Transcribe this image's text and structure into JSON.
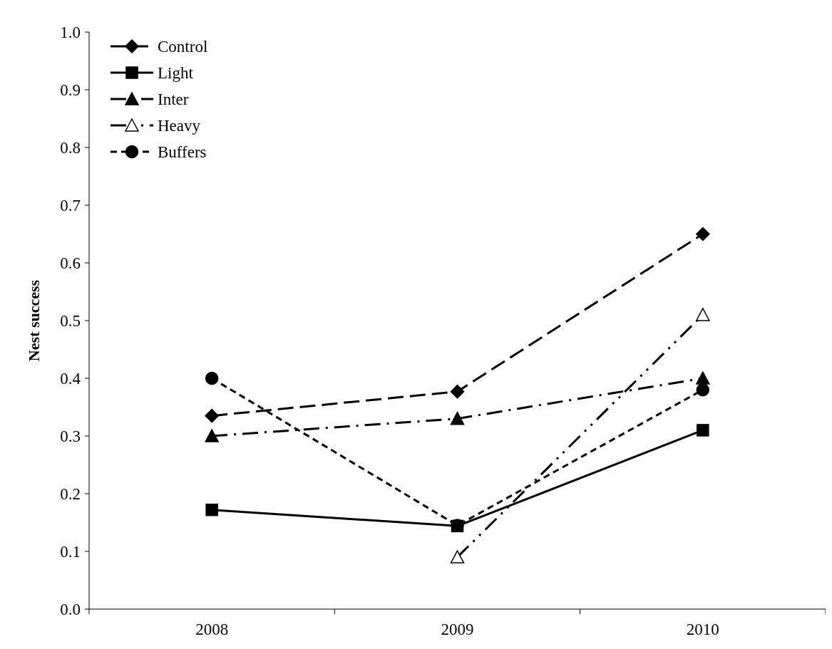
{
  "chart_data": {
    "type": "line",
    "ylabel": "Nest success",
    "categories": [
      "2008",
      "2009",
      "2010"
    ],
    "ylim": [
      0,
      1
    ],
    "yticks": [
      {
        "value": 0,
        "label": "0.0"
      },
      {
        "value": 0.1,
        "label": "0.1"
      },
      {
        "value": 0.2,
        "label": "0.2"
      },
      {
        "value": 0.3,
        "label": "0.3"
      },
      {
        "value": 0.4,
        "label": "0.4"
      },
      {
        "value": 0.5,
        "label": "0.5"
      },
      {
        "value": 0.6,
        "label": "0.6"
      },
      {
        "value": 0.7,
        "label": "0.7"
      },
      {
        "value": 0.8,
        "label": "0.8"
      },
      {
        "value": 0.9,
        "label": "0.9"
      },
      {
        "value": 1,
        "label": "1.0"
      }
    ],
    "grid": false,
    "legend": "top left",
    "series": [
      {
        "name": "Control",
        "color": "#000000",
        "values": [
          0.335,
          0.377,
          0.65
        ],
        "marker": "diamond",
        "line_style": "dashed"
      },
      {
        "name": "Light",
        "color": "#000000",
        "values": [
          0.172,
          0.144,
          0.31
        ],
        "marker": "square",
        "line_style": "solid"
      },
      {
        "name": "Inter",
        "color": "#000000",
        "values": [
          0.3,
          0.33,
          0.4
        ],
        "marker": "triangle",
        "line_style": "dashed"
      },
      {
        "name": "Heavy",
        "color": "#000000",
        "values": [
          null,
          0.09,
          0.51
        ],
        "marker": "triangle",
        "line_style": "dashed"
      },
      {
        "name": "Buffers",
        "color": "#000000",
        "values": [
          0.4,
          0.145,
          0.38
        ],
        "marker": "circle",
        "line_style": "dotted"
      }
    ]
  }
}
